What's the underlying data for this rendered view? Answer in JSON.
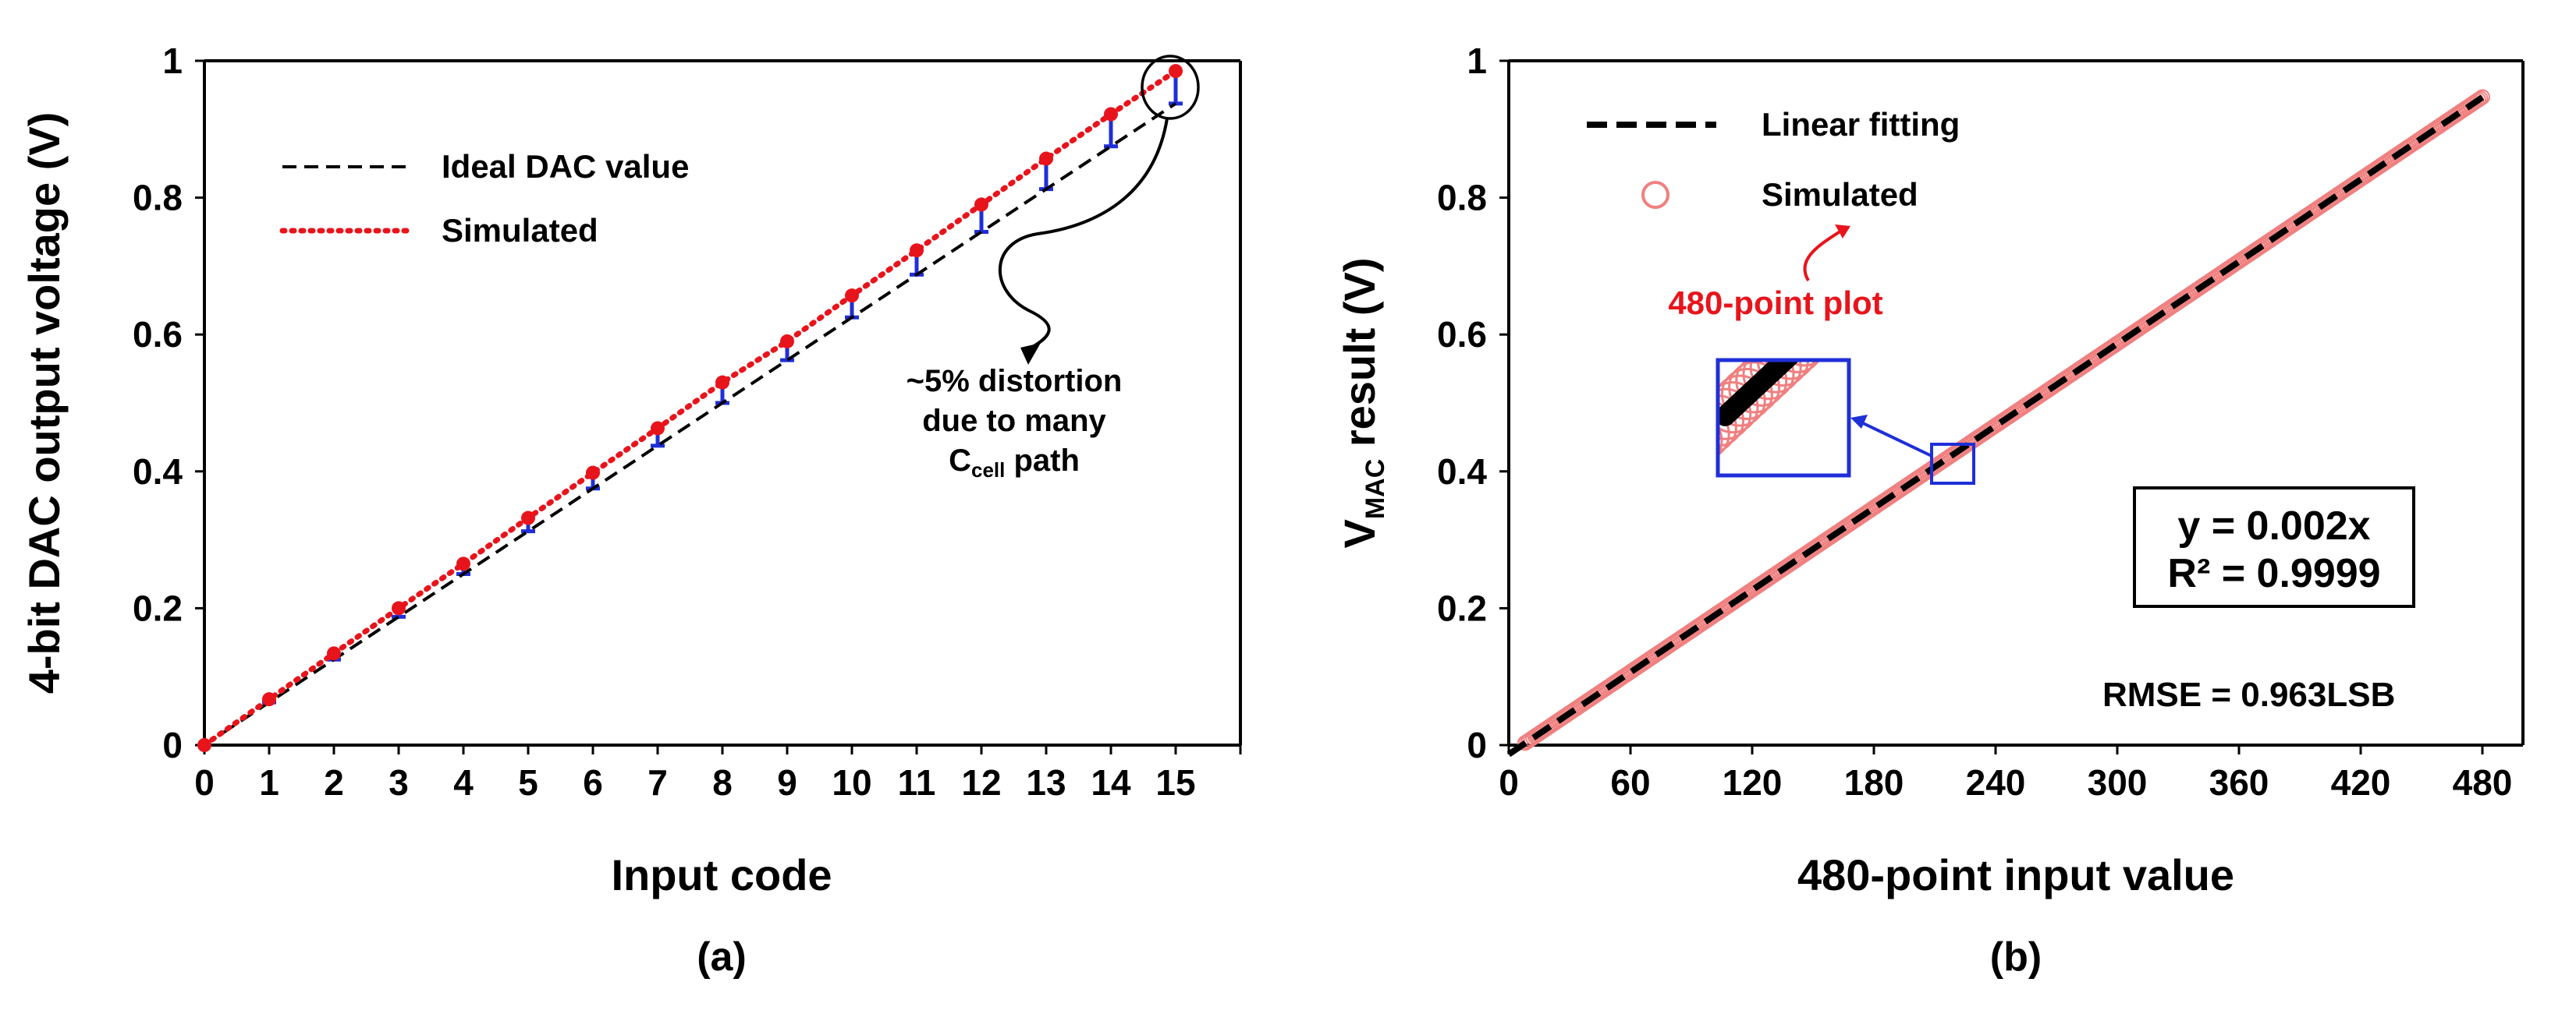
{
  "chart_data": [
    {
      "panel": "(a)",
      "type": "line",
      "xlabel": "Input code",
      "ylabel": "4-bit DAC output voltage (V)",
      "xlim": [
        0,
        16
      ],
      "ylim": [
        0,
        1
      ],
      "xticks": [
        0,
        1,
        2,
        3,
        4,
        5,
        6,
        7,
        8,
        9,
        10,
        11,
        12,
        13,
        14,
        15
      ],
      "yticks": [
        0,
        0.2,
        0.4,
        0.6,
        0.8,
        1
      ],
      "ytick_labels": [
        "0",
        "0.2",
        "0.4",
        "0.6",
        "0.8",
        "1"
      ],
      "series": [
        {
          "name": "Ideal DAC value",
          "style": "dashed",
          "color": "#000000",
          "x": [
            0,
            1,
            2,
            3,
            4,
            5,
            6,
            7,
            8,
            9,
            10,
            11,
            12,
            13,
            14,
            15
          ],
          "values": [
            0,
            0.0625,
            0.125,
            0.1875,
            0.25,
            0.3125,
            0.375,
            0.4375,
            0.5,
            0.5625,
            0.625,
            0.6875,
            0.75,
            0.8125,
            0.875,
            0.9375
          ]
        },
        {
          "name": "Simulated",
          "style": "dotted-markers",
          "color": "#e8141c",
          "x": [
            0,
            1,
            2,
            3,
            4,
            5,
            6,
            7,
            8,
            9,
            10,
            11,
            12,
            13,
            14,
            15
          ],
          "values": [
            0,
            0.067,
            0.134,
            0.2,
            0.265,
            0.332,
            0.398,
            0.463,
            0.53,
            0.59,
            0.657,
            0.723,
            0.79,
            0.857,
            0.922,
            0.985
          ]
        }
      ],
      "error_bar_color": "#1f2fd8",
      "annotation": {
        "line1": "~5% distortion",
        "line2": "due to many",
        "line3_main": "C",
        "line3_sub": "cell",
        "line3_tail": " path"
      }
    },
    {
      "panel": "(b)",
      "type": "scatter",
      "xlabel": "480-point input value",
      "ylabel_main": "V",
      "ylabel_sub": "MAC",
      "ylabel_tail": " result (V)",
      "xlim": [
        0,
        500
      ],
      "ylim": [
        0,
        1
      ],
      "xticks": [
        0,
        60,
        120,
        180,
        240,
        300,
        360,
        420,
        480
      ],
      "yticks": [
        0,
        0.2,
        0.4,
        0.6,
        0.8,
        1
      ],
      "ytick_labels": [
        "0",
        "0.2",
        "0.4",
        "0.6",
        "0.8",
        "1"
      ],
      "series": [
        {
          "name": "Linear fitting",
          "style": "dashed-thick",
          "color": "#000000",
          "x": [
            0,
            480
          ],
          "values": [
            -0.0135,
            0.9465
          ]
        },
        {
          "name": "Simulated",
          "style": "open-circles",
          "color": "#f08080",
          "x_range": [
            8,
            480
          ],
          "points": 480,
          "slope": 0.002,
          "intercept": -0.013
        }
      ],
      "annotation_red": "480-point plot",
      "inset_region": {
        "x": [
          206,
          224
        ],
        "y": [
          0.383,
          0.417
        ]
      },
      "fit_eq": "y = 0.002x",
      "fit_r2": "R² = 0.9999",
      "rmse": "RMSE = 0.963LSB"
    }
  ],
  "colors": {
    "simulated_red": "#e8141c",
    "circle_red": "#f08080",
    "highlight_blue": "#1f2fd8",
    "axis": "#000000"
  }
}
